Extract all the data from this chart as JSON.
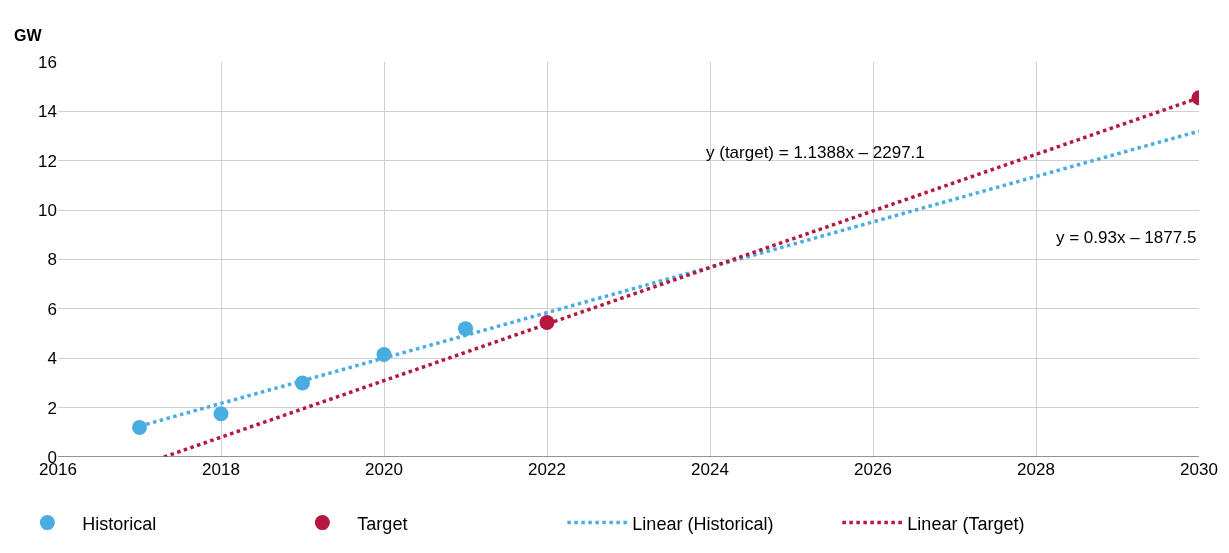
{
  "chart_data": {
    "type": "scatter",
    "ylabel": "GW",
    "xlim": [
      2016,
      2030
    ],
    "xticks": [
      2016,
      2018,
      2020,
      2022,
      2024,
      2026,
      2028,
      2030
    ],
    "ylim": [
      0,
      16
    ],
    "yticks": [
      0,
      2,
      4,
      6,
      8,
      10,
      12,
      14,
      16
    ],
    "grid": true,
    "legend": "bottom",
    "series": [
      {
        "name": "Historical",
        "marker": "circle",
        "color": "#4aade2",
        "x": [
          2017,
          2018,
          2019,
          2020,
          2021
        ],
        "values": [
          1.2,
          1.75,
          3.0,
          4.15,
          5.2
        ]
      },
      {
        "name": "Target",
        "marker": "circle",
        "color": "#b5173e",
        "x": [
          2022,
          2030
        ],
        "values": [
          5.45,
          14.55
        ]
      },
      {
        "name": "Linear (Historical)",
        "type": "line",
        "marker": "none",
        "line_style": "dotted",
        "color": "#4aade2",
        "x": [
          2017,
          2030
        ],
        "values": [
          1.25,
          13.2
        ]
      },
      {
        "name": "Linear (Target)",
        "type": "line",
        "marker": "none",
        "line_style": "dotted",
        "color": "#b5173e",
        "x": [
          2017.3,
          2030
        ],
        "values": [
          0,
          14.55
        ]
      }
    ],
    "annotations": [
      "y (target) = 1.1388x – 2297.1",
      "y = 0.93x – 1877.5"
    ]
  }
}
